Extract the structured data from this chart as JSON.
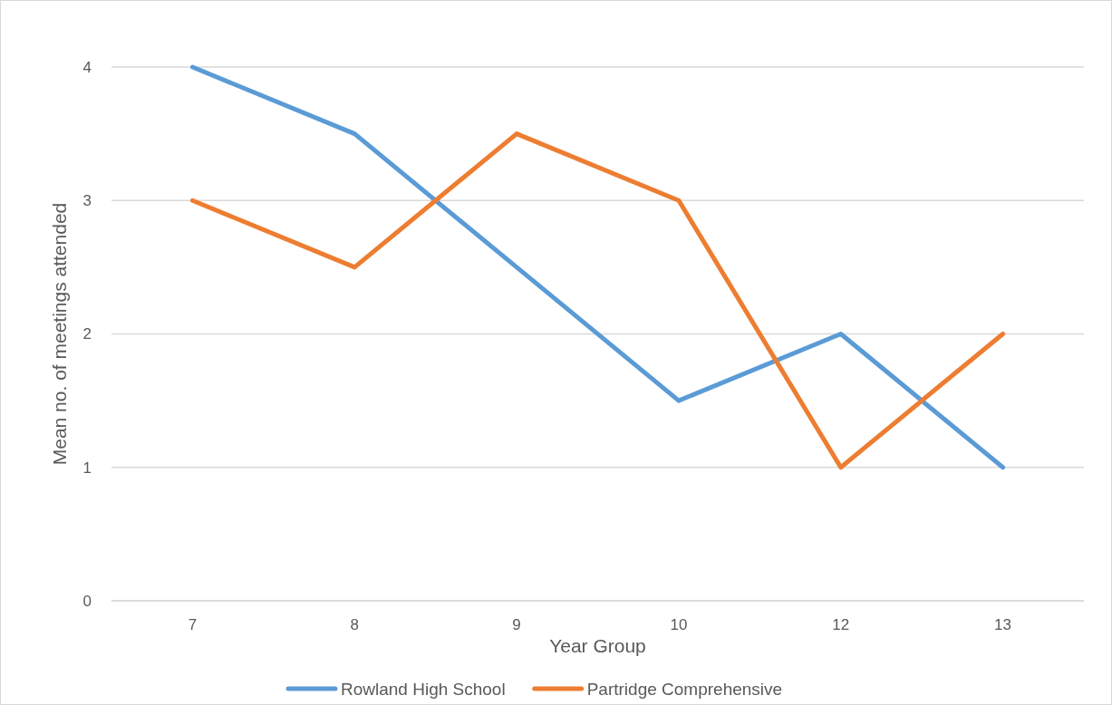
{
  "chart_data": {
    "type": "line",
    "xlabel": "Year Group",
    "ylabel": "Mean no. of meetings attended",
    "categories": [
      "7",
      "8",
      "9",
      "10",
      "12",
      "13"
    ],
    "series": [
      {
        "name": "Rowland High School",
        "color": "#5b9bd5",
        "values": [
          4,
          3.5,
          2.5,
          1.5,
          2,
          1
        ]
      },
      {
        "name": "Partridge Comprehensive",
        "color": "#ed7d31",
        "values": [
          3,
          2.5,
          3.5,
          3,
          1,
          2
        ]
      }
    ],
    "ylim": [
      0,
      4
    ],
    "yticks": [
      0,
      1,
      2,
      3,
      4
    ],
    "grid": "y",
    "legend": "bottom",
    "marker": "none",
    "line_style": "solid"
  }
}
